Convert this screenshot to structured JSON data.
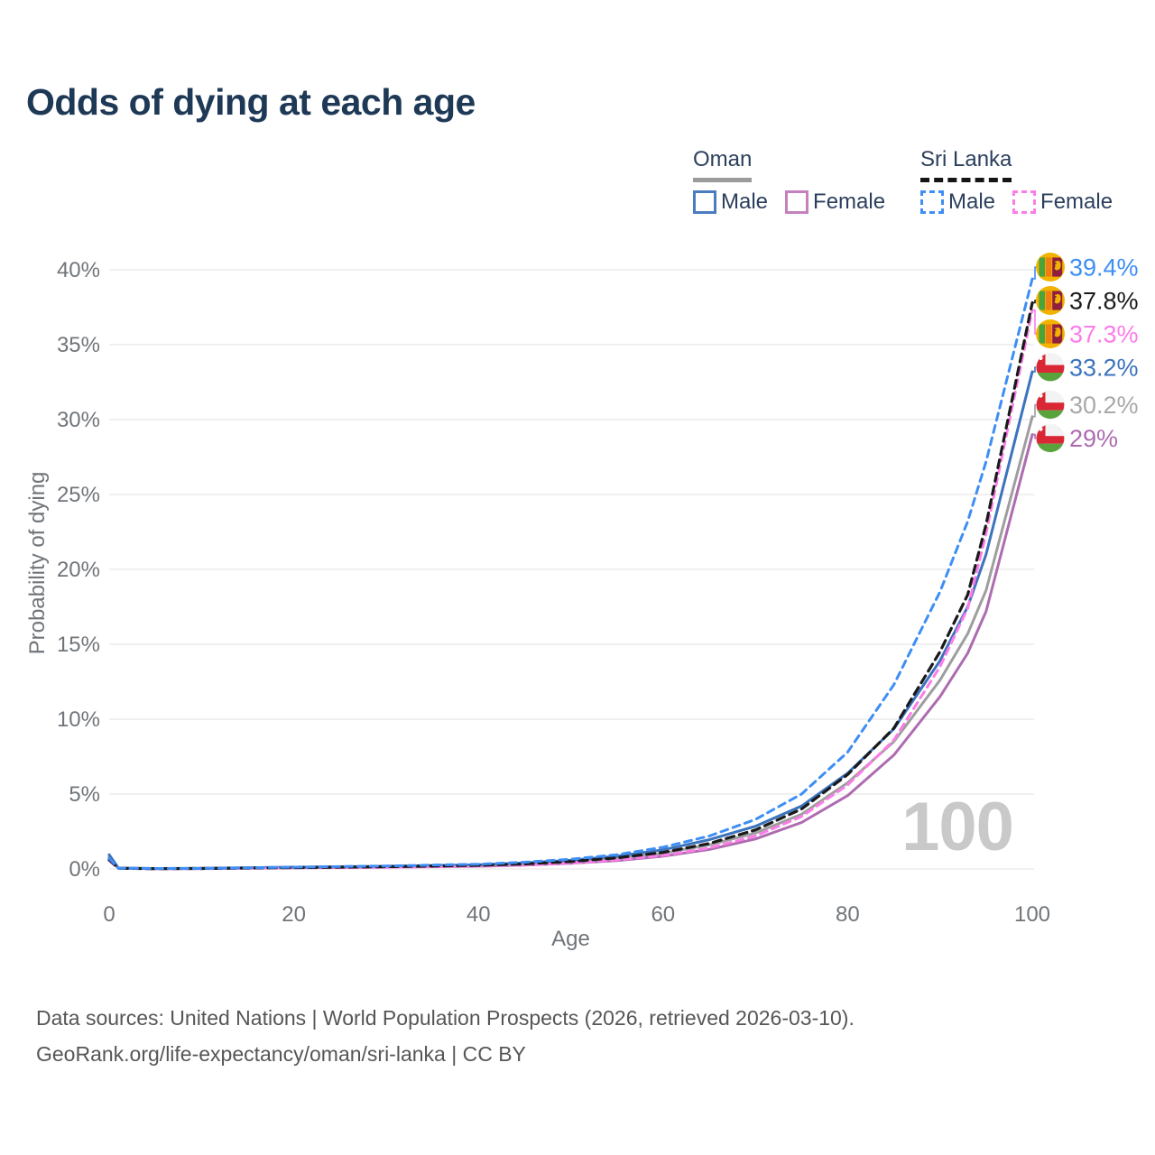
{
  "title": "Odds of dying at each age",
  "colors": {
    "background": "#ffffff",
    "title": "#1e3956",
    "grid": "#ebebeb",
    "axis_text": "#70757a",
    "watermark": "#c9c9c9",
    "legend_text": "#2b3f5c",
    "footer_text": "#565656"
  },
  "legend": {
    "groups": [
      {
        "country": "Oman",
        "line_style": "solid",
        "underline_color": "#9b9b9b",
        "items": [
          {
            "label": "Male",
            "color": "#4a7dc0",
            "dashed": false
          },
          {
            "label": "Female",
            "color": "#c481bd",
            "dashed": false
          }
        ]
      },
      {
        "country": "Sri Lanka",
        "line_style": "dashed",
        "underline_color": "#151515",
        "items": [
          {
            "label": "Male",
            "color": "#3e8ef5",
            "dashed": true
          },
          {
            "label": "Female",
            "color": "#fc7ce8",
            "dashed": true
          }
        ]
      }
    ]
  },
  "chart_data": {
    "type": "line",
    "title": "Odds of dying at each age",
    "xlabel": "Age",
    "ylabel": "Probability of dying",
    "xlim": [
      0,
      100
    ],
    "ylim": [
      0,
      40
    ],
    "grid": "horizontal",
    "legend_position": "top-right",
    "hovered_age": "100",
    "watermark": "100",
    "x": [
      0,
      1,
      5,
      10,
      20,
      30,
      40,
      45,
      50,
      55,
      60,
      65,
      70,
      75,
      80,
      85,
      90,
      93,
      95,
      100
    ],
    "xticks": [
      {
        "value": 0,
        "label": "0"
      },
      {
        "value": 20,
        "label": "20"
      },
      {
        "value": 40,
        "label": "40"
      },
      {
        "value": 60,
        "label": "60"
      },
      {
        "value": 80,
        "label": "80"
      },
      {
        "value": 100,
        "label": "100"
      }
    ],
    "yticks": [
      {
        "value": 0,
        "label": "0%"
      },
      {
        "value": 5,
        "label": "5%"
      },
      {
        "value": 10,
        "label": "10%"
      },
      {
        "value": 15,
        "label": "15%"
      },
      {
        "value": 20,
        "label": "20%"
      },
      {
        "value": 25,
        "label": "25%"
      },
      {
        "value": 30,
        "label": "30%"
      },
      {
        "value": 35,
        "label": "35%"
      },
      {
        "value": 40,
        "label": "40%"
      }
    ],
    "series": [
      {
        "name": "Sri Lanka — Male",
        "country": "Sri Lanka",
        "sex": "Male",
        "color": "#3e8ef5",
        "label_color": "#3e8ef5",
        "dash": "8 6",
        "width": 3,
        "flag": "lk",
        "end_label": "39.4%",
        "values": [
          0.7,
          0.05,
          0.03,
          0.03,
          0.12,
          0.2,
          0.32,
          0.45,
          0.65,
          0.95,
          1.45,
          2.2,
          3.3,
          5.0,
          7.8,
          12.3,
          18.5,
          23.2,
          27.2,
          39.4
        ]
      },
      {
        "name": "Sri Lanka — Both sexes",
        "country": "Sri Lanka",
        "sex": "Both sexes",
        "color": "#1a1a1a",
        "label_color": "#1a1a1a",
        "dash": "9 6",
        "width": 3.2,
        "flag": "lk",
        "end_label": "37.8%",
        "values": [
          0.62,
          0.04,
          0.02,
          0.03,
          0.09,
          0.15,
          0.24,
          0.34,
          0.5,
          0.74,
          1.1,
          1.7,
          2.6,
          4.0,
          6.3,
          9.4,
          14.5,
          18.3,
          23.0,
          37.8
        ]
      },
      {
        "name": "Sri Lanka — Female",
        "country": "Sri Lanka",
        "sex": "Female",
        "color": "#fc7ce8",
        "label_color": "#fc7ce8",
        "dash": "8 6",
        "width": 3,
        "flag": "lk",
        "end_label": "37.3%",
        "values": [
          0.55,
          0.04,
          0.02,
          0.02,
          0.07,
          0.11,
          0.18,
          0.26,
          0.4,
          0.6,
          0.9,
          1.4,
          2.2,
          3.5,
          5.6,
          8.6,
          13.5,
          17.4,
          22.4,
          37.3
        ]
      },
      {
        "name": "Oman — Male",
        "country": "Oman",
        "sex": "Male",
        "color": "#3c73bd",
        "label_color": "#3c73bd",
        "dash": "",
        "width": 3,
        "flag": "om",
        "end_label": "33.2%",
        "values": [
          0.95,
          0.06,
          0.03,
          0.04,
          0.12,
          0.18,
          0.28,
          0.4,
          0.58,
          0.85,
          1.28,
          1.95,
          2.85,
          4.2,
          6.4,
          9.35,
          13.9,
          17.5,
          21.0,
          33.2
        ]
      },
      {
        "name": "Oman — Both sexes",
        "country": "Oman",
        "sex": "Both sexes",
        "color": "#9e9e9e",
        "label_color": "#a9a9a9",
        "dash": "",
        "width": 3,
        "flag": "om",
        "end_label": "30.2%",
        "values": [
          0.85,
          0.05,
          0.03,
          0.03,
          0.1,
          0.15,
          0.23,
          0.33,
          0.48,
          0.7,
          1.05,
          1.6,
          2.4,
          3.65,
          5.75,
          8.5,
          12.6,
          15.7,
          18.6,
          30.2
        ]
      },
      {
        "name": "Oman — Female",
        "country": "Oman",
        "sex": "Female",
        "color": "#ad6cb0",
        "label_color": "#ad6cb0",
        "dash": "",
        "width": 3,
        "flag": "om",
        "end_label": "29%",
        "values": [
          0.75,
          0.05,
          0.02,
          0.03,
          0.08,
          0.12,
          0.18,
          0.26,
          0.38,
          0.56,
          0.85,
          1.3,
          2.0,
          3.1,
          4.9,
          7.6,
          11.5,
          14.4,
          17.2,
          29.0
        ]
      }
    ]
  },
  "footer": {
    "line1": "Data sources: United Nations | World Population Prospects (2026, retrieved 2026-03-10).",
    "line2": "GeoRank.org/life-expectancy/oman/sri-lanka | CC BY"
  }
}
